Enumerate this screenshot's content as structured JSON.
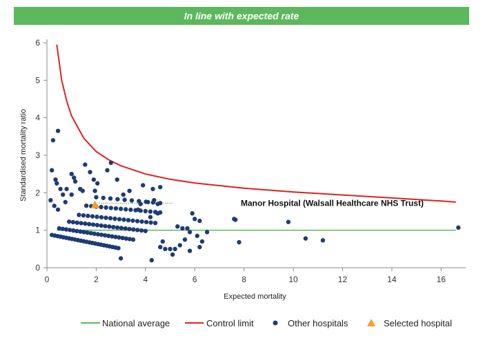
{
  "banner": {
    "text": "In line with expected rate"
  },
  "chart_data": {
    "type": "scatter",
    "xlabel": "Expected mortality",
    "ylabel": "Standardised mortality ratio",
    "xlim": [
      0,
      17
    ],
    "ylim": [
      0,
      6
    ],
    "x_ticks": [
      0,
      2,
      4,
      6,
      8,
      10,
      12,
      14,
      16
    ],
    "y_ticks": [
      0,
      1,
      2,
      3,
      4,
      5,
      6
    ],
    "grid": false,
    "legend_position": "bottom",
    "colors": {
      "national": "#5cb85c",
      "control": "#e02020",
      "other": "#1f3b73",
      "selected": "#f5a020"
    },
    "national_average": {
      "name": "National average",
      "y": 1.0,
      "x_range": [
        0.4,
        16.6
      ]
    },
    "control_limit": {
      "name": "Control limit",
      "points": [
        [
          0.4,
          5.95
        ],
        [
          0.6,
          5.0
        ],
        [
          0.8,
          4.45
        ],
        [
          1,
          4.05
        ],
        [
          1.5,
          3.45
        ],
        [
          2,
          3.1
        ],
        [
          2.5,
          2.88
        ],
        [
          3,
          2.72
        ],
        [
          4,
          2.5
        ],
        [
          5,
          2.36
        ],
        [
          6,
          2.26
        ],
        [
          7,
          2.19
        ],
        [
          8,
          2.12
        ],
        [
          9,
          2.07
        ],
        [
          10,
          2.02
        ],
        [
          11,
          1.98
        ],
        [
          12,
          1.94
        ],
        [
          13,
          1.9
        ],
        [
          14,
          1.86
        ],
        [
          15,
          1.82
        ],
        [
          16,
          1.78
        ],
        [
          16.6,
          1.75
        ]
      ]
    },
    "selected_hospital": {
      "name": "Selected hospital",
      "x": 1.95,
      "y": 1.68
    },
    "annotation": {
      "text": "Manor Hospital (Walsall Healthcare NHS Trust)",
      "x": 4.3,
      "y": 1.72
    },
    "other_hospitals": {
      "name": "Other hospitals",
      "points": [
        [
          0.15,
          1.8
        ],
        [
          0.25,
          3.4
        ],
        [
          0.45,
          3.65
        ],
        [
          0.2,
          2.6
        ],
        [
          0.35,
          2.35
        ],
        [
          0.4,
          2.25
        ],
        [
          0.55,
          2.1
        ],
        [
          0.8,
          2.1
        ],
        [
          0.65,
          1.95
        ],
        [
          0.3,
          1.65
        ],
        [
          0.45,
          1.55
        ],
        [
          0.75,
          1.75
        ],
        [
          1.0,
          2.5
        ],
        [
          1.1,
          2.4
        ],
        [
          1.15,
          2.3
        ],
        [
          1.35,
          2.1
        ],
        [
          1.45,
          2.05
        ],
        [
          1.0,
          1.95
        ],
        [
          1.55,
          2.75
        ],
        [
          1.75,
          2.55
        ],
        [
          1.9,
          2.35
        ],
        [
          2.05,
          2.25
        ],
        [
          1.95,
          2.05
        ],
        [
          2.45,
          2.6
        ],
        [
          2.6,
          2.8
        ],
        [
          2.85,
          2.35
        ],
        [
          3.1,
          1.95
        ],
        [
          3.35,
          2.05
        ],
        [
          3.9,
          2.2
        ],
        [
          4.3,
          2.1
        ],
        [
          4.6,
          2.15
        ],
        [
          4.35,
          1.8
        ],
        [
          4.1,
          1.75
        ],
        [
          4.5,
          1.7
        ],
        [
          3.8,
          1.7
        ],
        [
          3.7,
          1.55
        ],
        [
          4.2,
          1.35
        ],
        [
          4.5,
          1.45
        ],
        [
          5.3,
          1.1
        ],
        [
          5.5,
          1.05
        ],
        [
          5.7,
          1.05
        ],
        [
          5.8,
          0.95
        ],
        [
          5.9,
          1.45
        ],
        [
          6.0,
          1.3
        ],
        [
          6.2,
          1.25
        ],
        [
          6.1,
          0.85
        ],
        [
          6.3,
          0.7
        ],
        [
          6.5,
          0.95
        ],
        [
          6.2,
          0.55
        ],
        [
          5.6,
          0.75
        ],
        [
          5.4,
          0.6
        ],
        [
          5.2,
          0.5
        ],
        [
          5.0,
          0.5
        ],
        [
          4.8,
          0.5
        ],
        [
          4.6,
          0.55
        ],
        [
          5.8,
          0.45
        ],
        [
          5.1,
          0.35
        ],
        [
          4.7,
          0.7
        ],
        [
          4.25,
          0.2
        ],
        [
          3.0,
          0.25
        ],
        [
          7.6,
          1.3
        ],
        [
          7.65,
          1.28
        ],
        [
          7.8,
          0.68
        ],
        [
          9.8,
          1.22
        ],
        [
          10.5,
          0.78
        ],
        [
          11.2,
          0.73
        ],
        [
          16.7,
          1.07
        ]
      ],
      "curves": [
        {
          "y0": 0.9,
          "k": 0.13,
          "from": 0.2,
          "to": 2.9,
          "n": 24
        },
        {
          "y0": 1.1,
          "k": 0.1,
          "from": 0.5,
          "to": 3.5,
          "n": 22
        },
        {
          "y0": 1.3,
          "k": 0.08,
          "from": 0.9,
          "to": 4.0,
          "n": 20
        },
        {
          "y0": 1.5,
          "k": 0.07,
          "from": 1.3,
          "to": 4.4,
          "n": 18
        },
        {
          "y0": 1.75,
          "k": 0.06,
          "from": 1.6,
          "to": 4.6,
          "n": 16
        },
        {
          "y0": 2.0,
          "k": 0.06,
          "from": 2.0,
          "to": 4.6,
          "n": 10
        }
      ]
    }
  }
}
